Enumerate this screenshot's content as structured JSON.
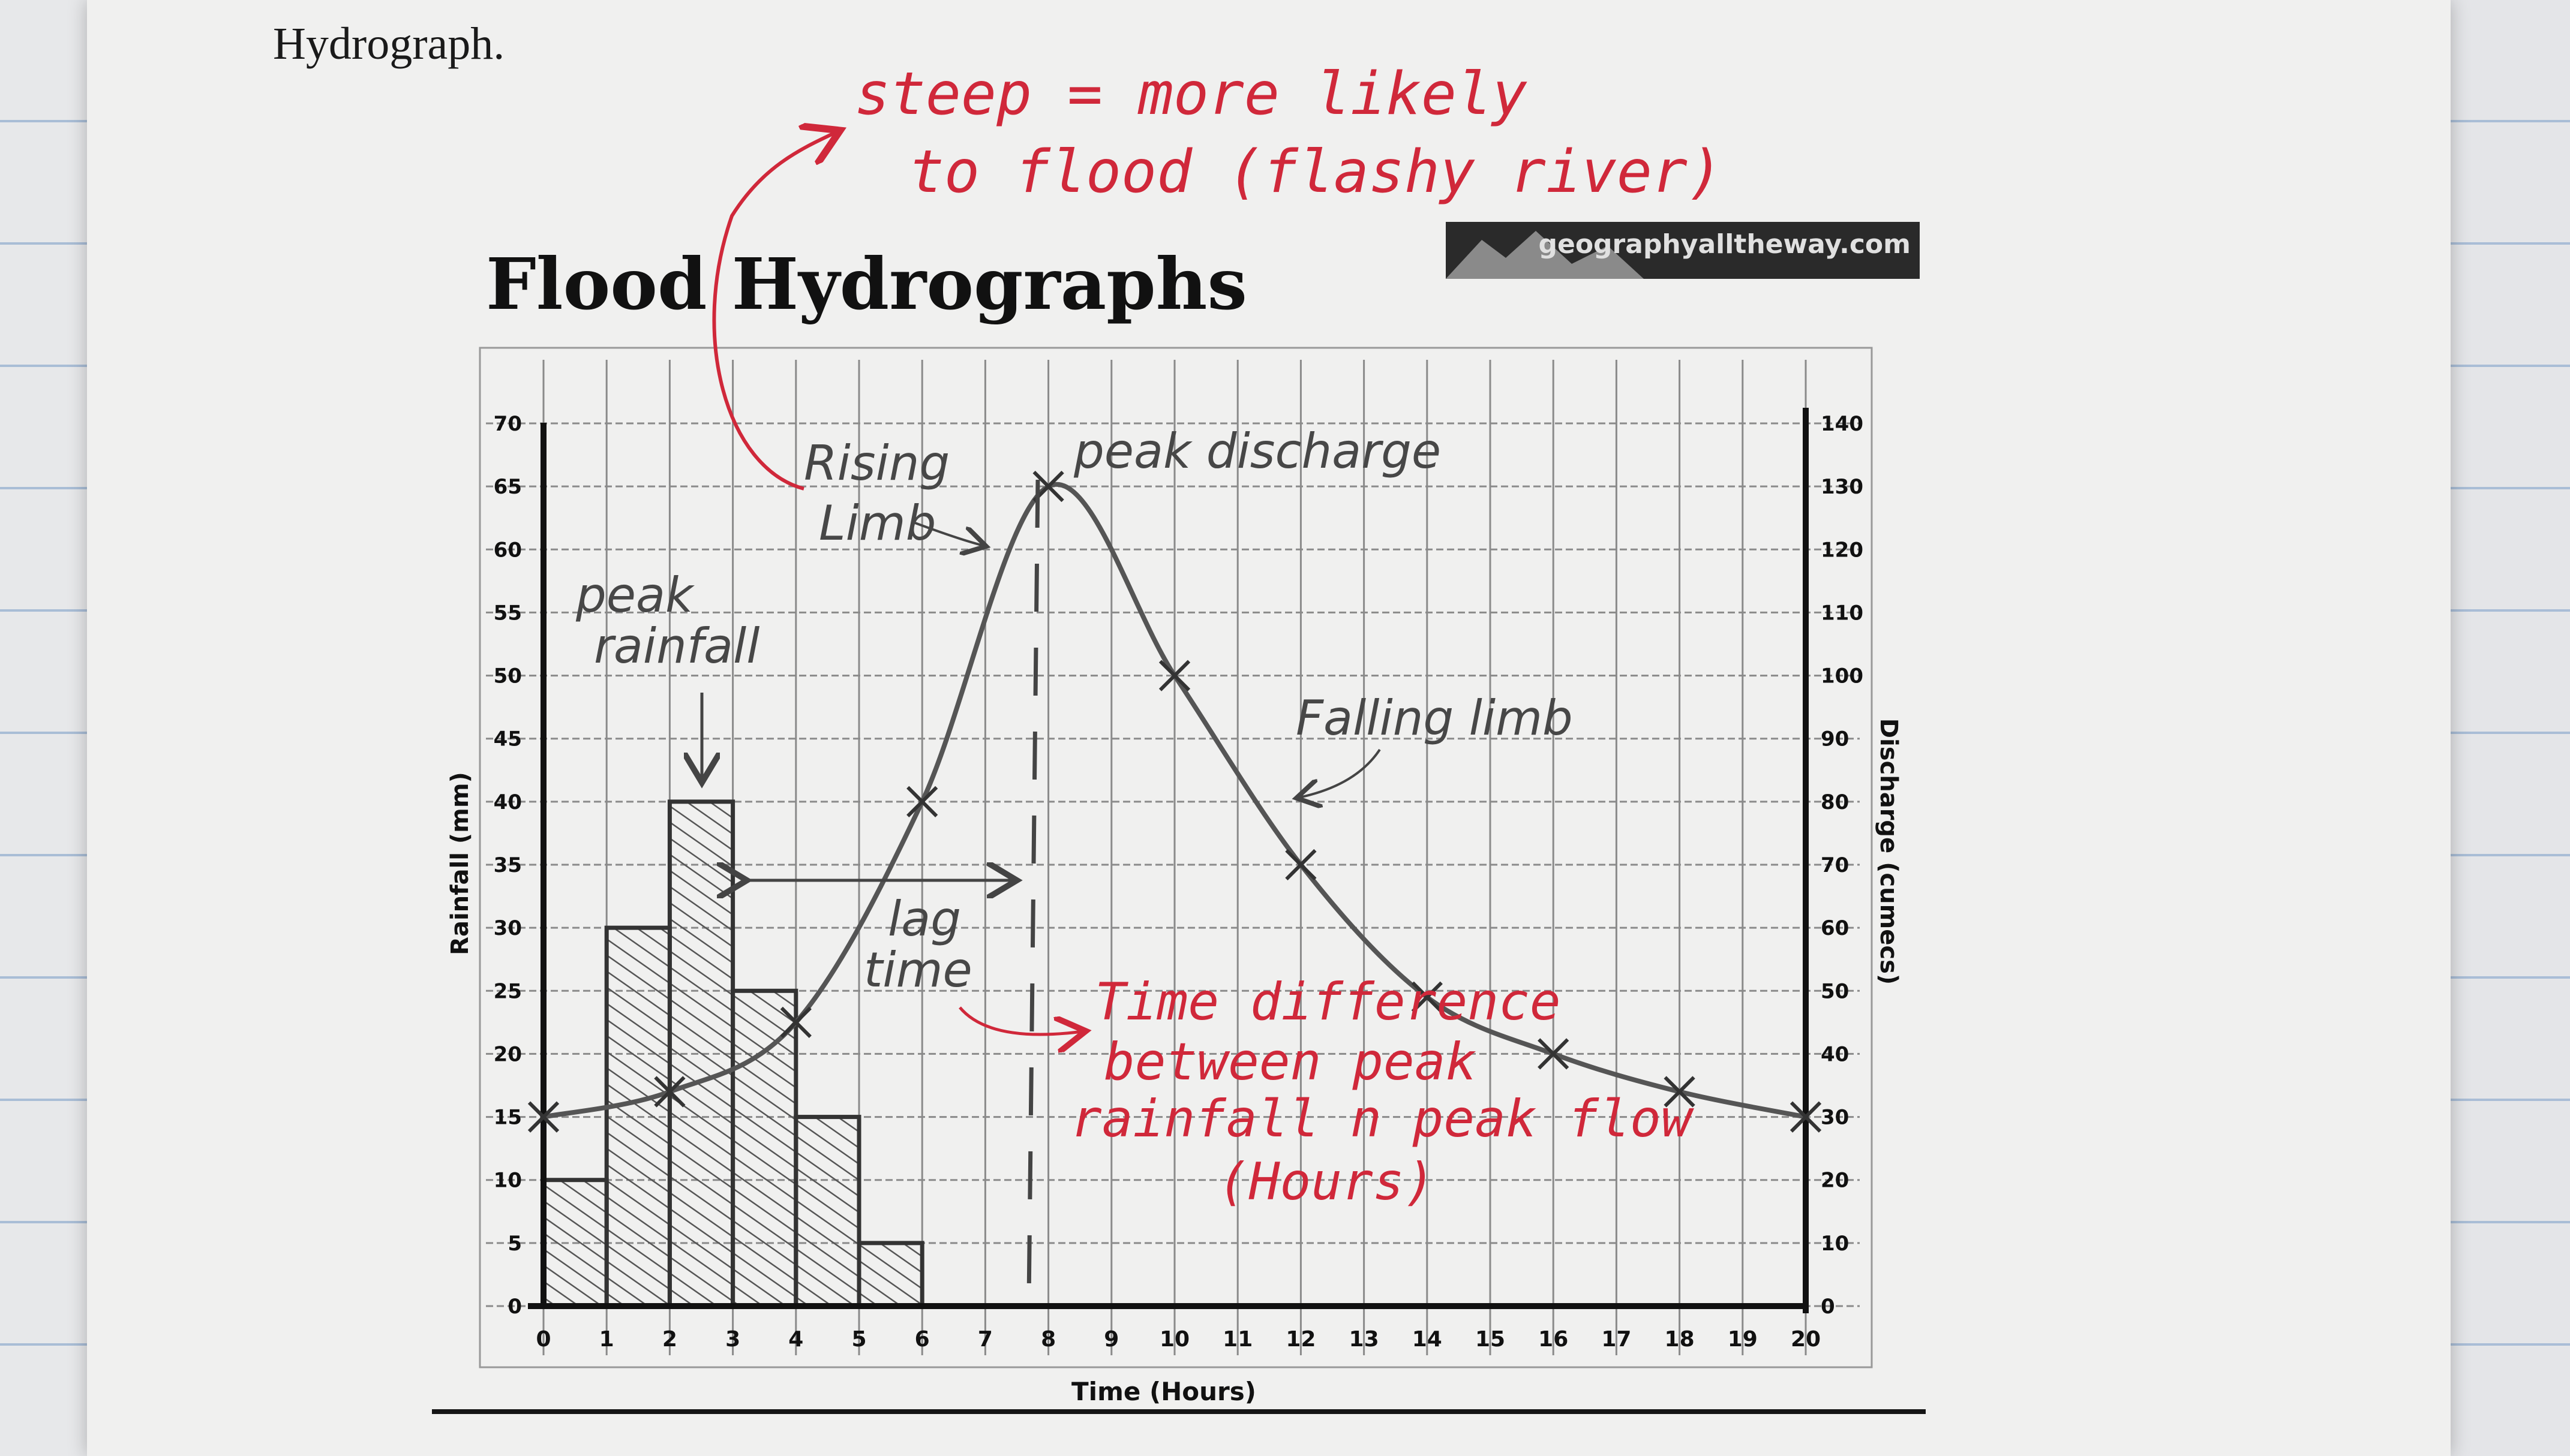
{
  "page": {
    "intro_text": "Hydrograph."
  },
  "chart_data": {
    "type": "bar",
    "title": "Flood Hydrographs",
    "logo_text": "geographyalltheway.com",
    "xlabel": "Time (Hours)",
    "ylabel": "Rainfall (mm)",
    "y2label": "Discharge (cumecs)",
    "xlim": [
      0,
      20
    ],
    "ylim": [
      0,
      70
    ],
    "y2lim": [
      0,
      140
    ],
    "x_ticks": [
      0,
      1,
      2,
      3,
      4,
      5,
      6,
      7,
      8,
      9,
      10,
      11,
      12,
      13,
      14,
      15,
      16,
      17,
      18,
      19,
      20
    ],
    "y_ticks": [
      0,
      5,
      10,
      15,
      20,
      25,
      30,
      35,
      40,
      45,
      50,
      55,
      60,
      65,
      70
    ],
    "y2_ticks": [
      0,
      10,
      20,
      30,
      40,
      50,
      60,
      70,
      80,
      90,
      100,
      110,
      120,
      130,
      140
    ],
    "grid": true,
    "series": [
      {
        "type": "bar",
        "axis": "left",
        "bins": [
          {
            "x0": 0,
            "x1": 1,
            "value": 10
          },
          {
            "x0": 1,
            "x1": 2,
            "value": 30
          },
          {
            "x0": 2,
            "x1": 3,
            "value": 40
          },
          {
            "x0": 3,
            "x1": 4,
            "value": 25
          },
          {
            "x0": 4,
            "x1": 5,
            "value": 15
          },
          {
            "x0": 5,
            "x1": 6,
            "value": 5
          }
        ]
      },
      {
        "type": "line",
        "axis": "right",
        "points": [
          [
            0,
            30
          ],
          [
            2,
            34
          ],
          [
            4,
            45
          ],
          [
            6,
            80
          ],
          [
            8,
            130
          ],
          [
            10,
            100
          ],
          [
            12,
            70
          ],
          [
            14,
            49
          ],
          [
            16,
            40
          ],
          [
            18,
            34
          ],
          [
            20,
            30
          ]
        ]
      }
    ],
    "annotations": {
      "handwritten": [
        {
          "id": "rising-limb-1",
          "text": "Rising"
        },
        {
          "id": "rising-limb-2",
          "text": "Limb"
        },
        {
          "id": "peak-discharge",
          "text": "peak discharge"
        },
        {
          "id": "peak-rainfall-1",
          "text": "peak"
        },
        {
          "id": "peak-rainfall-2",
          "text": "rainfall"
        },
        {
          "id": "falling-limb",
          "text": "Falling limb"
        },
        {
          "id": "lag-time-1",
          "text": "lag"
        },
        {
          "id": "lag-time-2",
          "text": "time"
        }
      ],
      "red_notes": [
        {
          "id": "steep-1",
          "text": "steep = more likely"
        },
        {
          "id": "steep-2",
          "text": "to flood (flashy river)"
        },
        {
          "id": "lag-def-1",
          "text": "Time difference"
        },
        {
          "id": "lag-def-2",
          "text": "between peak"
        },
        {
          "id": "lag-def-3",
          "text": "rainfall n peak flow"
        },
        {
          "id": "lag-def-4",
          "text": "(Hours)"
        }
      ]
    },
    "colors": {
      "ink_pencil": "#444444",
      "ink_red": "#d0283a",
      "axis": "#111111",
      "grid": "#8a8a8a"
    }
  }
}
